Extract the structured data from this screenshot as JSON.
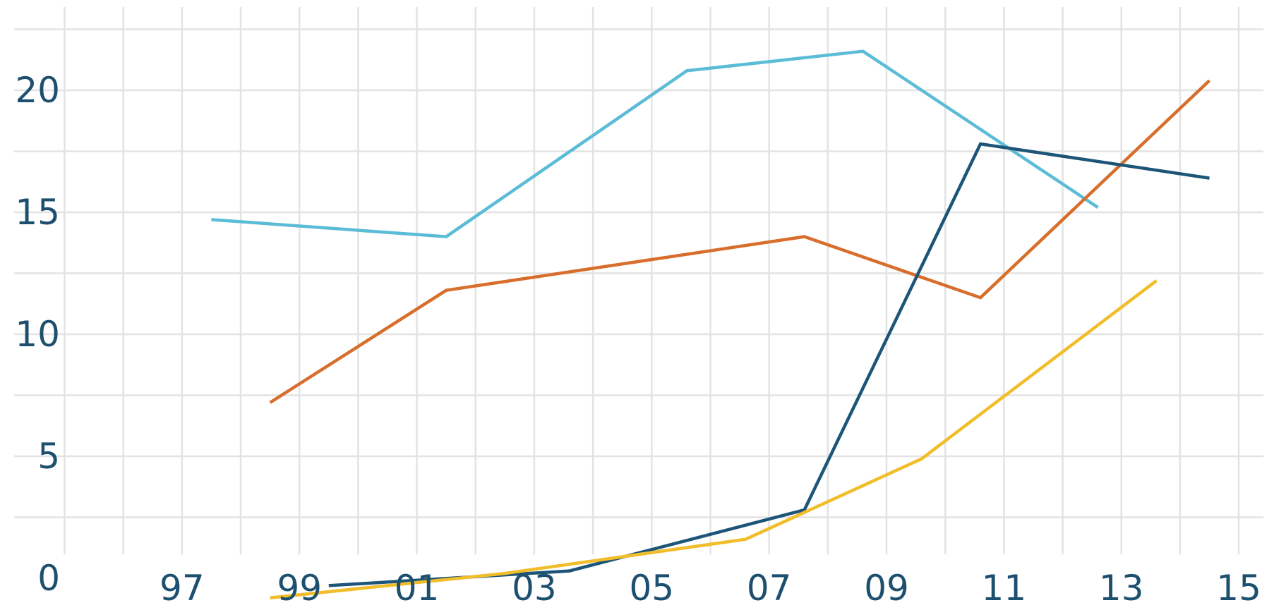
{
  "chart_data": {
    "type": "line",
    "title": "",
    "xlabel": "",
    "ylabel": "",
    "x_ticks": [
      {
        "year": 1997,
        "label": "97"
      },
      {
        "year": 1999,
        "label": "99"
      },
      {
        "year": 2001,
        "label": "01"
      },
      {
        "year": 2003,
        "label": "03"
      },
      {
        "year": 2005,
        "label": "05"
      },
      {
        "year": 2007,
        "label": "07"
      },
      {
        "year": 2009,
        "label": "09"
      },
      {
        "year": 2011,
        "label": "11"
      },
      {
        "year": 2013,
        "label": "13"
      },
      {
        "year": 2015,
        "label": "15"
      }
    ],
    "y_ticks": [
      {
        "value": 0,
        "label": "0"
      },
      {
        "value": 5,
        "label": "5"
      },
      {
        "value": 10,
        "label": "10"
      },
      {
        "value": 15,
        "label": "15"
      },
      {
        "value": 20,
        "label": "20"
      }
    ],
    "xlim": [
      1993.9,
      2015.6
    ],
    "ylim": [
      -1.3,
      23.7
    ],
    "grid": true,
    "series": [
      {
        "color": "#5bbcd6",
        "points": [
          {
            "x": 1997.5,
            "y": 14.7
          },
          {
            "x": 2001.5,
            "y": 14.0
          },
          {
            "x": 2005.6,
            "y": 20.8
          },
          {
            "x": 2008.6,
            "y": 21.6
          },
          {
            "x": 2012.6,
            "y": 15.2
          }
        ]
      },
      {
        "color": "#d86e2c",
        "points": [
          {
            "x": 1998.5,
            "y": 7.2
          },
          {
            "x": 2001.5,
            "y": 11.8
          },
          {
            "x": 2007.6,
            "y": 14.0
          },
          {
            "x": 2010.6,
            "y": 11.5
          },
          {
            "x": 2014.5,
            "y": 20.4
          }
        ]
      },
      {
        "color": "#1c5578",
        "points": [
          {
            "x": 1999.5,
            "y": -0.3
          },
          {
            "x": 2003.6,
            "y": 0.3
          },
          {
            "x": 2007.6,
            "y": 2.8
          },
          {
            "x": 2010.6,
            "y": 17.8
          },
          {
            "x": 2014.5,
            "y": 16.4
          }
        ]
      },
      {
        "color": "#f1bd2a",
        "points": [
          {
            "x": 1998.5,
            "y": -0.8
          },
          {
            "x": 2002.5,
            "y": 0.2
          },
          {
            "x": 2006.6,
            "y": 1.6
          },
          {
            "x": 2009.6,
            "y": 4.9
          },
          {
            "x": 2013.6,
            "y": 12.2
          }
        ]
      }
    ]
  }
}
